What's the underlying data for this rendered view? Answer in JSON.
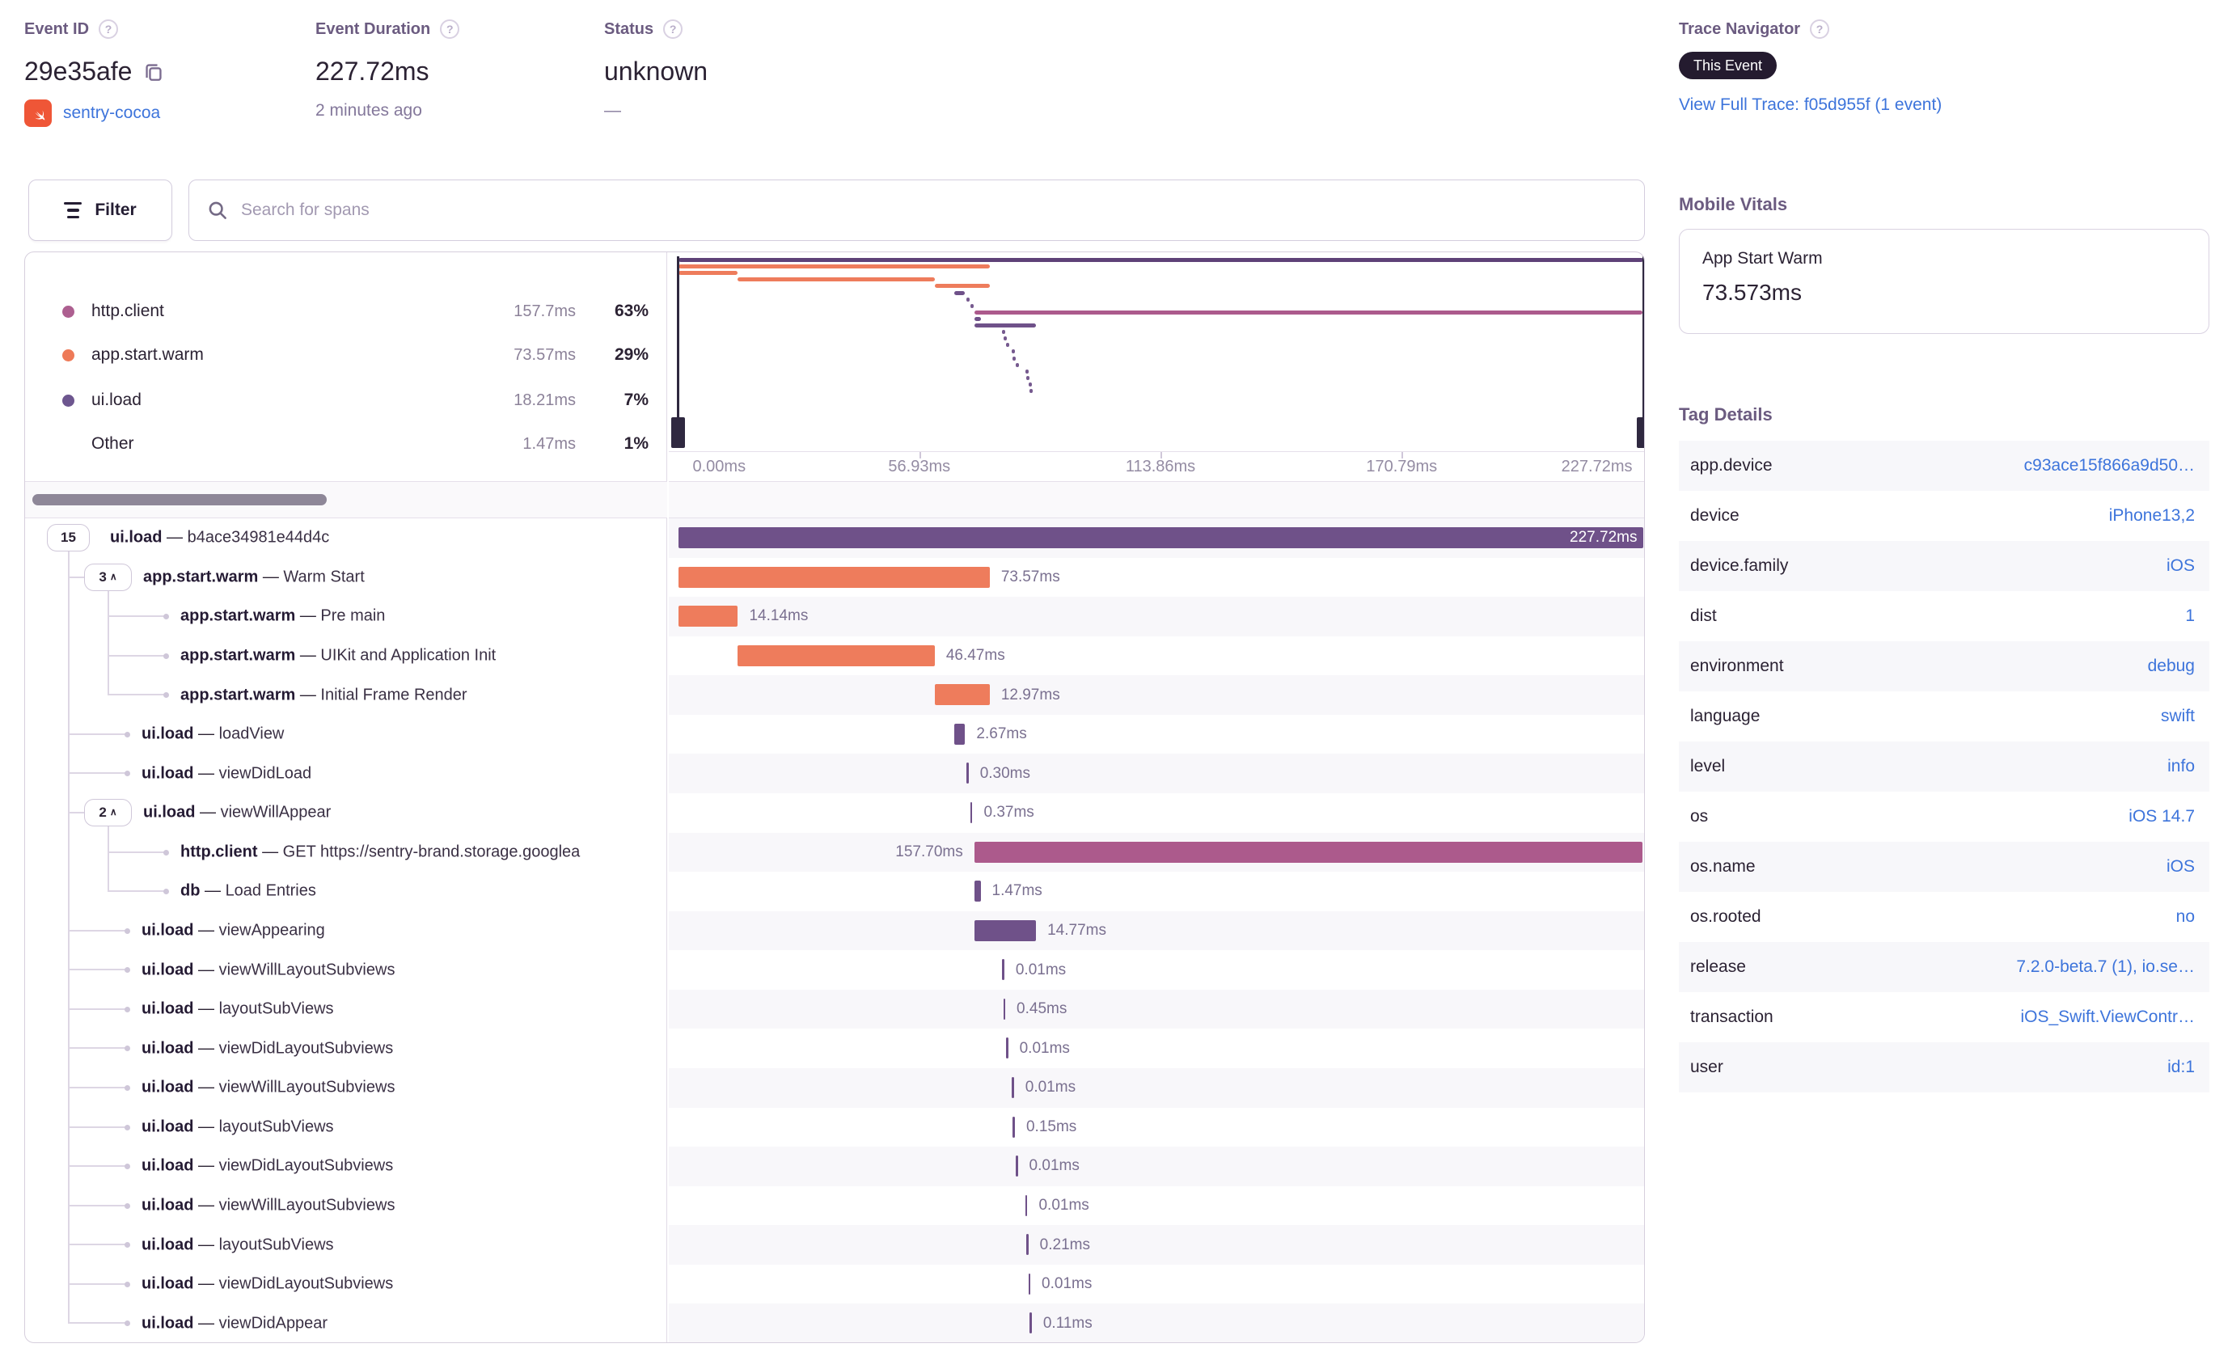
{
  "header": {
    "event_id": {
      "label": "Event ID",
      "value": "29e35afe",
      "project": "sentry-cocoa"
    },
    "duration": {
      "label": "Event Duration",
      "value": "227.72ms",
      "ago": "2 minutes ago"
    },
    "status": {
      "label": "Status",
      "value": "unknown",
      "sub": "—"
    },
    "trace_nav": {
      "label": "Trace Navigator",
      "badge": "This Event",
      "link": "View Full Trace: f05d955f (1 event)"
    }
  },
  "toolbar": {
    "filter_label": "Filter",
    "search_placeholder": "Search for spans"
  },
  "icons": {
    "help": "?",
    "chevron_up": "∧"
  },
  "colors": {
    "purple_bar": "#6f5189",
    "purple_minimap_root": "#5e4178",
    "orange_bar": "#ee7c5c",
    "maroon_bar": "#ac5a8c",
    "link_blue": "#3d74db",
    "text_dark": "#2b2233",
    "heading": "#6b5b80",
    "badge_bg": "#241b2f",
    "swift_orange": "#ef5637"
  },
  "legend": {
    "items": [
      {
        "op": "http.client",
        "duration": "157.7ms",
        "pct": "63%",
        "color": "#ad5f90",
        "dot": true
      },
      {
        "op": "app.start.warm",
        "duration": "73.57ms",
        "pct": "29%",
        "color": "#ee7a58",
        "dot": true
      },
      {
        "op": "ui.load",
        "duration": "18.21ms",
        "pct": "7%",
        "color": "#6d568f",
        "dot": true
      },
      {
        "op": "Other",
        "duration": "1.47ms",
        "pct": "1%",
        "color": null,
        "dot": false
      }
    ]
  },
  "minimap": {
    "axis_ticks": [
      {
        "label": "0.00ms",
        "pos": 0,
        "align": "left"
      },
      {
        "label": "56.93ms",
        "pos": 25,
        "align": "center"
      },
      {
        "label": "113.86ms",
        "pos": 50,
        "align": "center"
      },
      {
        "label": "170.79ms",
        "pos": 75,
        "align": "center"
      },
      {
        "label": "227.72ms",
        "pos": 100,
        "align": "right"
      }
    ]
  },
  "spans": [
    {
      "count": "15",
      "chevron": false,
      "op": "ui.load",
      "sep": "—",
      "desc": "b4ace34981e44d4c",
      "level": 0,
      "color": "purple",
      "duration": "227.72ms",
      "start": 0,
      "width": 100,
      "label": "inside"
    },
    {
      "count": "3",
      "chevron": true,
      "op": "app.start.warm",
      "sep": "—",
      "desc": "Warm Start",
      "level": 1,
      "color": "orange",
      "duration": "73.57ms",
      "start": 0,
      "width": 32.3,
      "label": "right"
    },
    {
      "op": "app.start.warm",
      "sep": "—",
      "desc": "Pre main",
      "level": 2,
      "color": "orange",
      "duration": "14.14ms",
      "start": 0,
      "width": 6.2,
      "label": "right"
    },
    {
      "op": "app.start.warm",
      "sep": "—",
      "desc": "UIKit and Application Init",
      "level": 2,
      "color": "orange",
      "duration": "46.47ms",
      "start": 6.2,
      "width": 20.4,
      "label": "right"
    },
    {
      "op": "app.start.warm",
      "sep": "—",
      "desc": "Initial Frame Render",
      "level": 2,
      "color": "orange",
      "duration": "12.97ms",
      "start": 26.6,
      "width": 5.7,
      "label": "right"
    },
    {
      "op": "ui.load",
      "sep": "—",
      "desc": "loadView",
      "level": 1,
      "color": "purple",
      "duration": "2.67ms",
      "start": 28.6,
      "width": 1.15,
      "label": "right"
    },
    {
      "op": "ui.load",
      "sep": "—",
      "desc": "viewDidLoad",
      "level": 1,
      "color": "purple",
      "duration": "0.30ms",
      "start": 29.9,
      "width": 0.13,
      "label": "right"
    },
    {
      "count": "2",
      "chevron": true,
      "op": "ui.load",
      "sep": "—",
      "desc": "viewWillAppear",
      "level": 1,
      "color": "purple",
      "duration": "0.37ms",
      "start": 30.3,
      "width": 0.16,
      "label": "right"
    },
    {
      "op": "http.client",
      "sep": "—",
      "desc": "GET https://sentry-brand.storage.googlea",
      "level": 2,
      "color": "maroon",
      "duration": "157.70ms",
      "start": 30.7,
      "width": 69.3,
      "label": "left"
    },
    {
      "op": "db",
      "sep": "—",
      "desc": "Load Entries",
      "level": 2,
      "color": "purple",
      "duration": "1.47ms",
      "start": 30.7,
      "width": 0.65,
      "label": "right"
    },
    {
      "op": "ui.load",
      "sep": "—",
      "desc": "viewAppearing",
      "level": 1,
      "color": "purple",
      "duration": "14.77ms",
      "start": 30.7,
      "width": 6.4,
      "label": "right"
    },
    {
      "op": "ui.load",
      "sep": "—",
      "desc": "viewWillLayoutSubviews",
      "level": 1,
      "color": "purple",
      "duration": "0.01ms",
      "start": 33.6,
      "width": 0.01,
      "label": "right"
    },
    {
      "op": "ui.load",
      "sep": "—",
      "desc": "layoutSubViews",
      "level": 1,
      "color": "purple",
      "duration": "0.45ms",
      "start": 33.7,
      "width": 0.2,
      "label": "right"
    },
    {
      "op": "ui.load",
      "sep": "—",
      "desc": "viewDidLayoutSubviews",
      "level": 1,
      "color": "purple",
      "duration": "0.01ms",
      "start": 34.0,
      "width": 0.01,
      "label": "right"
    },
    {
      "op": "ui.load",
      "sep": "—",
      "desc": "viewWillLayoutSubviews",
      "level": 1,
      "color": "purple",
      "duration": "0.01ms",
      "start": 34.6,
      "width": 0.01,
      "label": "right"
    },
    {
      "op": "ui.load",
      "sep": "—",
      "desc": "layoutSubViews",
      "level": 1,
      "color": "purple",
      "duration": "0.15ms",
      "start": 34.7,
      "width": 0.07,
      "label": "right"
    },
    {
      "op": "ui.load",
      "sep": "—",
      "desc": "viewDidLayoutSubviews",
      "level": 1,
      "color": "purple",
      "duration": "0.01ms",
      "start": 35.0,
      "width": 0.01,
      "label": "right"
    },
    {
      "op": "ui.load",
      "sep": "—",
      "desc": "viewWillLayoutSubviews",
      "level": 1,
      "color": "purple",
      "duration": "0.01ms",
      "start": 36.0,
      "width": 0.01,
      "label": "right"
    },
    {
      "op": "ui.load",
      "sep": "—",
      "desc": "layoutSubViews",
      "level": 1,
      "color": "purple",
      "duration": "0.21ms",
      "start": 36.1,
      "width": 0.09,
      "label": "right"
    },
    {
      "op": "ui.load",
      "sep": "—",
      "desc": "viewDidLayoutSubviews",
      "level": 1,
      "color": "purple",
      "duration": "0.01ms",
      "start": 36.3,
      "width": 0.01,
      "label": "right"
    },
    {
      "op": "ui.load",
      "sep": "—",
      "desc": "viewDidAppear",
      "level": 1,
      "color": "purple",
      "duration": "0.11ms",
      "start": 36.45,
      "width": 0.05,
      "label": "right"
    }
  ],
  "tree_groups": [
    {
      "parent": 0,
      "from": 1,
      "to": 20
    },
    {
      "parent": 1,
      "from": 2,
      "to": 4
    },
    {
      "parent": 7,
      "from": 8,
      "to": 9
    }
  ],
  "vitals": {
    "heading": "Mobile Vitals",
    "card_title": "App Start Warm",
    "card_value": "73.573ms"
  },
  "tags": {
    "heading": "Tag Details",
    "rows": [
      {
        "key": "app.device",
        "value": "c93ace15f866a9d50…"
      },
      {
        "key": "device",
        "value": "iPhone13,2"
      },
      {
        "key": "device.family",
        "value": "iOS"
      },
      {
        "key": "dist",
        "value": "1"
      },
      {
        "key": "environment",
        "value": "debug"
      },
      {
        "key": "language",
        "value": "swift"
      },
      {
        "key": "level",
        "value": "info"
      },
      {
        "key": "os",
        "value": "iOS 14.7"
      },
      {
        "key": "os.name",
        "value": "iOS"
      },
      {
        "key": "os.rooted",
        "value": "no"
      },
      {
        "key": "release",
        "value": "7.2.0-beta.7 (1), io.se…"
      },
      {
        "key": "transaction",
        "value": "iOS_Swift.ViewContr…"
      },
      {
        "key": "user",
        "value": "id:1"
      }
    ]
  }
}
